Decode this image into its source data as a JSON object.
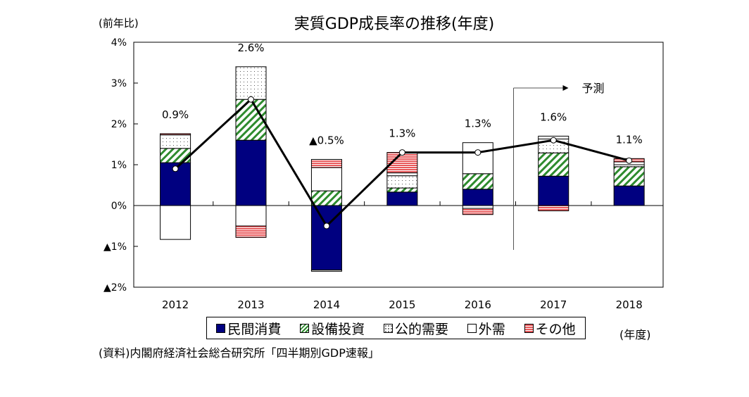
{
  "chart_data": {
    "type": "bar",
    "stacked": true,
    "title": "実質GDP成長率の推移(年度)",
    "ylabel": "(前年比)",
    "xlabel": "(年度)",
    "ylim": [
      -2,
      4
    ],
    "yticks": [
      4,
      3,
      2,
      1,
      0,
      -1,
      -2
    ],
    "ytick_labels": [
      "4%",
      "3%",
      "2%",
      "1%",
      "0%",
      "▲1%",
      "▲2%"
    ],
    "categories": [
      "2012",
      "2013",
      "2014",
      "2015",
      "2016",
      "2017",
      "2018"
    ],
    "series": [
      {
        "name": "民間消費",
        "color": "#000080",
        "pattern": "solid",
        "values": [
          1.05,
          1.6,
          -1.58,
          0.33,
          0.4,
          0.72,
          0.48
        ]
      },
      {
        "name": "設備投資",
        "color": "#2e8b2e",
        "pattern": "diagonal",
        "values": [
          0.35,
          1.0,
          0.36,
          0.1,
          0.38,
          0.57,
          0.47
        ]
      },
      {
        "name": "公的需要",
        "color": "#808080",
        "pattern": "dots",
        "values": [
          0.33,
          0.8,
          -0.03,
          0.3,
          -0.07,
          0.34,
          0.05
        ]
      },
      {
        "name": "外需",
        "color": "#ffffff",
        "pattern": "blank",
        "values": [
          -0.83,
          -0.5,
          0.57,
          0.07,
          0.76,
          0.07,
          0.07
        ]
      },
      {
        "name": "その他",
        "color": "#e8585a",
        "pattern": "horizontal",
        "values": [
          0.03,
          -0.28,
          0.2,
          0.5,
          -0.15,
          -0.13,
          0.08
        ]
      }
    ],
    "line": {
      "name": "実質GDP成長率",
      "values": [
        0.9,
        2.6,
        -0.5,
        1.3,
        1.3,
        1.6,
        1.1
      ],
      "labels": [
        "0.9%",
        "2.6%",
        "▲0.5%",
        "1.3%",
        "1.3%",
        "1.6%",
        "1.1%"
      ]
    },
    "annotation": {
      "text": "予測",
      "from_category": "2017"
    },
    "legend_placement": "bottom",
    "grid": false
  },
  "source": "(資料)内閣府経済社会総合研究所「四半期別GDP速報」"
}
